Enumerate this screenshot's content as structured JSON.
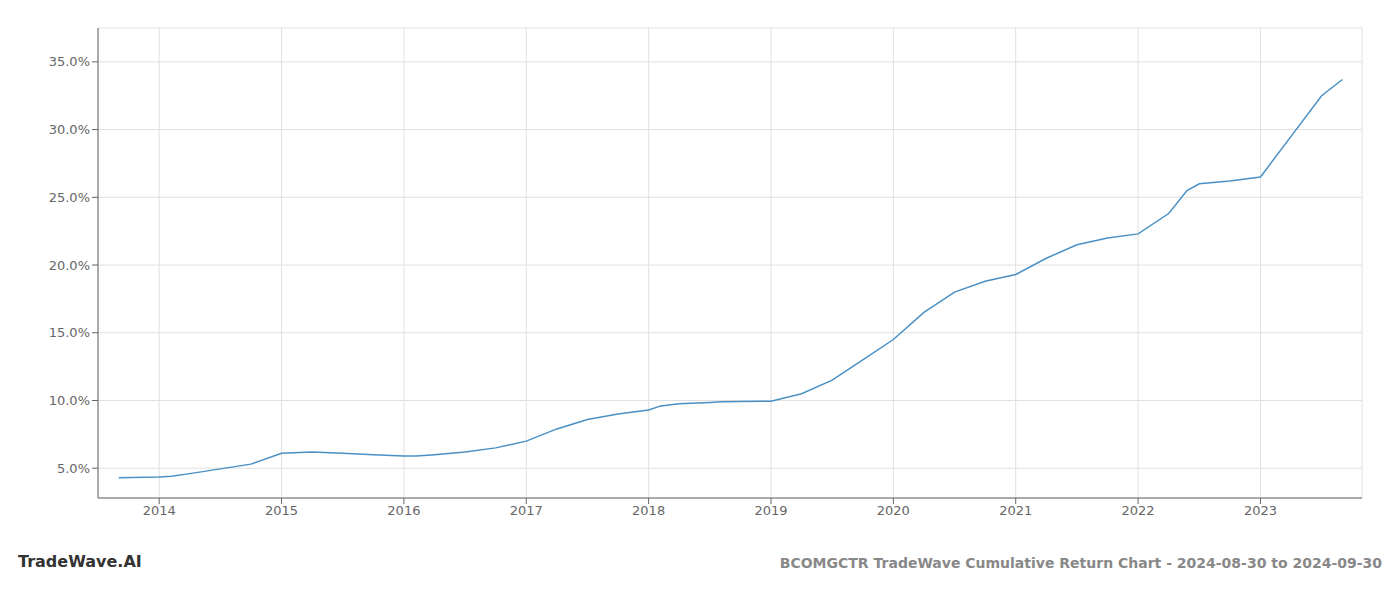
{
  "chart_data": {
    "type": "line",
    "title": "BCOMGCTR TradeWave Cumulative Return Chart - 2024-08-30 to 2024-09-30",
    "annotations": [
      "TradeWave.AI"
    ],
    "x": [
      2013.67,
      2014.0,
      2014.1,
      2014.25,
      2014.5,
      2014.75,
      2015.0,
      2015.25,
      2015.5,
      2015.75,
      2016.0,
      2016.1,
      2016.25,
      2016.5,
      2016.75,
      2017.0,
      2017.25,
      2017.5,
      2017.75,
      2018.0,
      2018.1,
      2018.25,
      2018.5,
      2018.6,
      2018.75,
      2019.0,
      2019.25,
      2019.5,
      2019.75,
      2020.0,
      2020.25,
      2020.5,
      2020.75,
      2021.0,
      2021.25,
      2021.5,
      2021.75,
      2022.0,
      2022.25,
      2022.4,
      2022.5,
      2022.75,
      2023.0,
      2023.25,
      2023.5,
      2023.67
    ],
    "values": [
      4.3,
      4.35,
      4.4,
      4.6,
      4.95,
      5.3,
      6.1,
      6.2,
      6.1,
      6.0,
      5.9,
      5.9,
      6.0,
      6.2,
      6.5,
      7.0,
      7.9,
      8.6,
      9.0,
      9.3,
      9.6,
      9.75,
      9.85,
      9.9,
      9.92,
      9.95,
      10.5,
      11.5,
      13.0,
      14.5,
      16.5,
      18.0,
      18.8,
      19.3,
      20.5,
      21.5,
      22.0,
      22.3,
      23.8,
      25.5,
      26.0,
      26.2,
      26.5,
      29.5,
      32.5,
      33.7
    ],
    "color": "#4a90c4",
    "xlim": [
      2013.5,
      2023.83
    ],
    "xticks": [
      2014,
      2015,
      2016,
      2017,
      2018,
      2019,
      2020,
      2021,
      2022,
      2023
    ],
    "ylim": [
      2.8,
      37.5
    ],
    "yticks": [
      {
        "value": 5.0,
        "label": "5.0%"
      },
      {
        "value": 10.0,
        "label": "10.0%"
      },
      {
        "value": 15.0,
        "label": "15.0%"
      },
      {
        "value": 20.0,
        "label": "20.0%"
      },
      {
        "value": 25.0,
        "label": "25.0%"
      },
      {
        "value": 30.0,
        "label": "30.0%"
      },
      {
        "value": 35.0,
        "label": "35.0%"
      }
    ],
    "grid": true
  }
}
